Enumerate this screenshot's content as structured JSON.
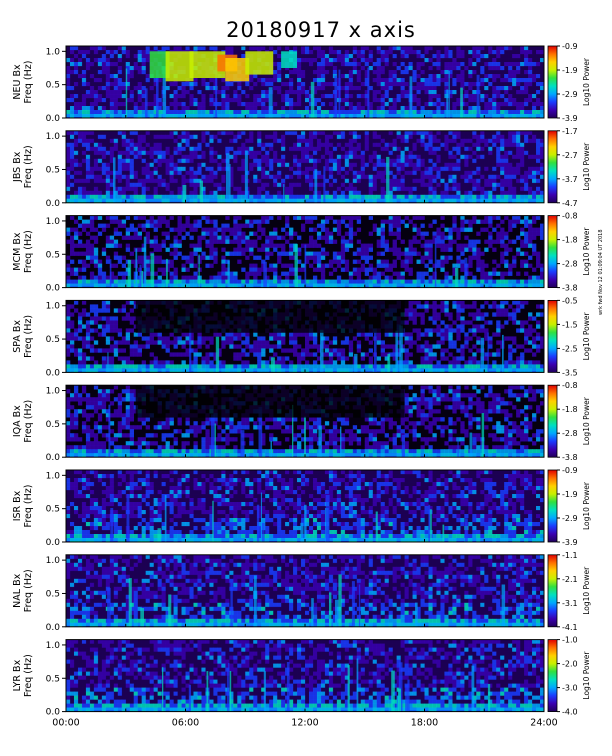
{
  "title": "20180917 x axis",
  "side_note": "wrk fwd Nov 12 01:09:04 UT 2018",
  "colors": {
    "background": "#000000",
    "palette": [
      "#20005a",
      "#3a00b0",
      "#1a3cff",
      "#00a8ff",
      "#00e0c0",
      "#30e040",
      "#c8f000",
      "#ffd000",
      "#ff7000",
      "#e00000"
    ]
  },
  "chart_data": {
    "type": "heatmap",
    "title": "20180917 x axis",
    "x": {
      "ticks": [
        "00:00",
        "06:00",
        "12:00",
        "18:00",
        "24:00"
      ],
      "range_hours": [
        0,
        24
      ]
    },
    "panels": [
      {
        "station": "NEU Bx",
        "ylabel": "Freq (Hz)",
        "yticks": [
          "0.0",
          "0.5",
          "1.0"
        ],
        "ylim": [
          0,
          1.08
        ],
        "colorbar": {
          "label": "Log10 Power",
          "ticks": [
            "-0.9",
            "-1.9",
            "-2.9",
            "-3.9"
          ],
          "min": -3.9,
          "max": -0.9
        }
      },
      {
        "station": "JBS Bx",
        "ylabel": "Freq (Hz)",
        "yticks": [
          "0.0",
          "0.5",
          "1.0"
        ],
        "ylim": [
          0,
          1.08
        ],
        "colorbar": {
          "label": "Log10 Power",
          "ticks": [
            "-1.7",
            "-2.7",
            "-3.7",
            "-4.7"
          ],
          "min": -4.7,
          "max": -1.7
        }
      },
      {
        "station": "MCM Bx",
        "ylabel": "Freq (Hz)",
        "yticks": [
          "0.0",
          "0.5",
          "1.0"
        ],
        "ylim": [
          0,
          1.08
        ],
        "colorbar": {
          "label": "Log10 Power",
          "ticks": [
            "-0.8",
            "-1.8",
            "-2.8",
            "-3.8"
          ],
          "min": -3.8,
          "max": -0.8
        }
      },
      {
        "station": "SPA Bx",
        "ylabel": "Freq (Hz)",
        "yticks": [
          "0.0",
          "0.5",
          "1.0"
        ],
        "ylim": [
          0,
          1.08
        ],
        "colorbar": {
          "label": "Log10 Power",
          "ticks": [
            "-0.5",
            "-1.5",
            "-2.5",
            "-3.5"
          ],
          "min": -3.5,
          "max": -0.5
        }
      },
      {
        "station": "IQA Bx",
        "ylabel": "Freq (Hz)",
        "yticks": [
          "0.0",
          "0.5",
          "1.0"
        ],
        "ylim": [
          0,
          1.08
        ],
        "colorbar": {
          "label": "Log10 Power",
          "ticks": [
            "-0.8",
            "-1.8",
            "-2.8",
            "-3.8"
          ],
          "min": -3.8,
          "max": -0.8
        }
      },
      {
        "station": "ISR Bx",
        "ylabel": "Freq (Hz)",
        "yticks": [
          "0.0",
          "0.5",
          "1.0"
        ],
        "ylim": [
          0,
          1.08
        ],
        "colorbar": {
          "label": "Log10 Power",
          "ticks": [
            "-0.9",
            "-1.9",
            "-2.9",
            "-3.9"
          ],
          "min": -3.9,
          "max": -0.9
        }
      },
      {
        "station": "NAL Bx",
        "ylabel": "Freq (Hz)",
        "yticks": [
          "0.0",
          "0.5",
          "1.0"
        ],
        "ylim": [
          0,
          1.08
        ],
        "colorbar": {
          "label": "Log10 Power",
          "ticks": [
            "-1.1",
            "-2.1",
            "-3.1",
            "-4.1"
          ],
          "min": -4.1,
          "max": -1.1
        }
      },
      {
        "station": "LYR Bx",
        "ylabel": "Freq (Hz)",
        "yticks": [
          "0.0",
          "0.5",
          "1.0"
        ],
        "ylim": [
          0,
          1.08
        ],
        "colorbar": {
          "label": "Log10 Power",
          "ticks": [
            "-1.0",
            "-2.0",
            "-3.0",
            "-4.0"
          ],
          "min": -4.0,
          "max": -1.0
        }
      }
    ]
  }
}
